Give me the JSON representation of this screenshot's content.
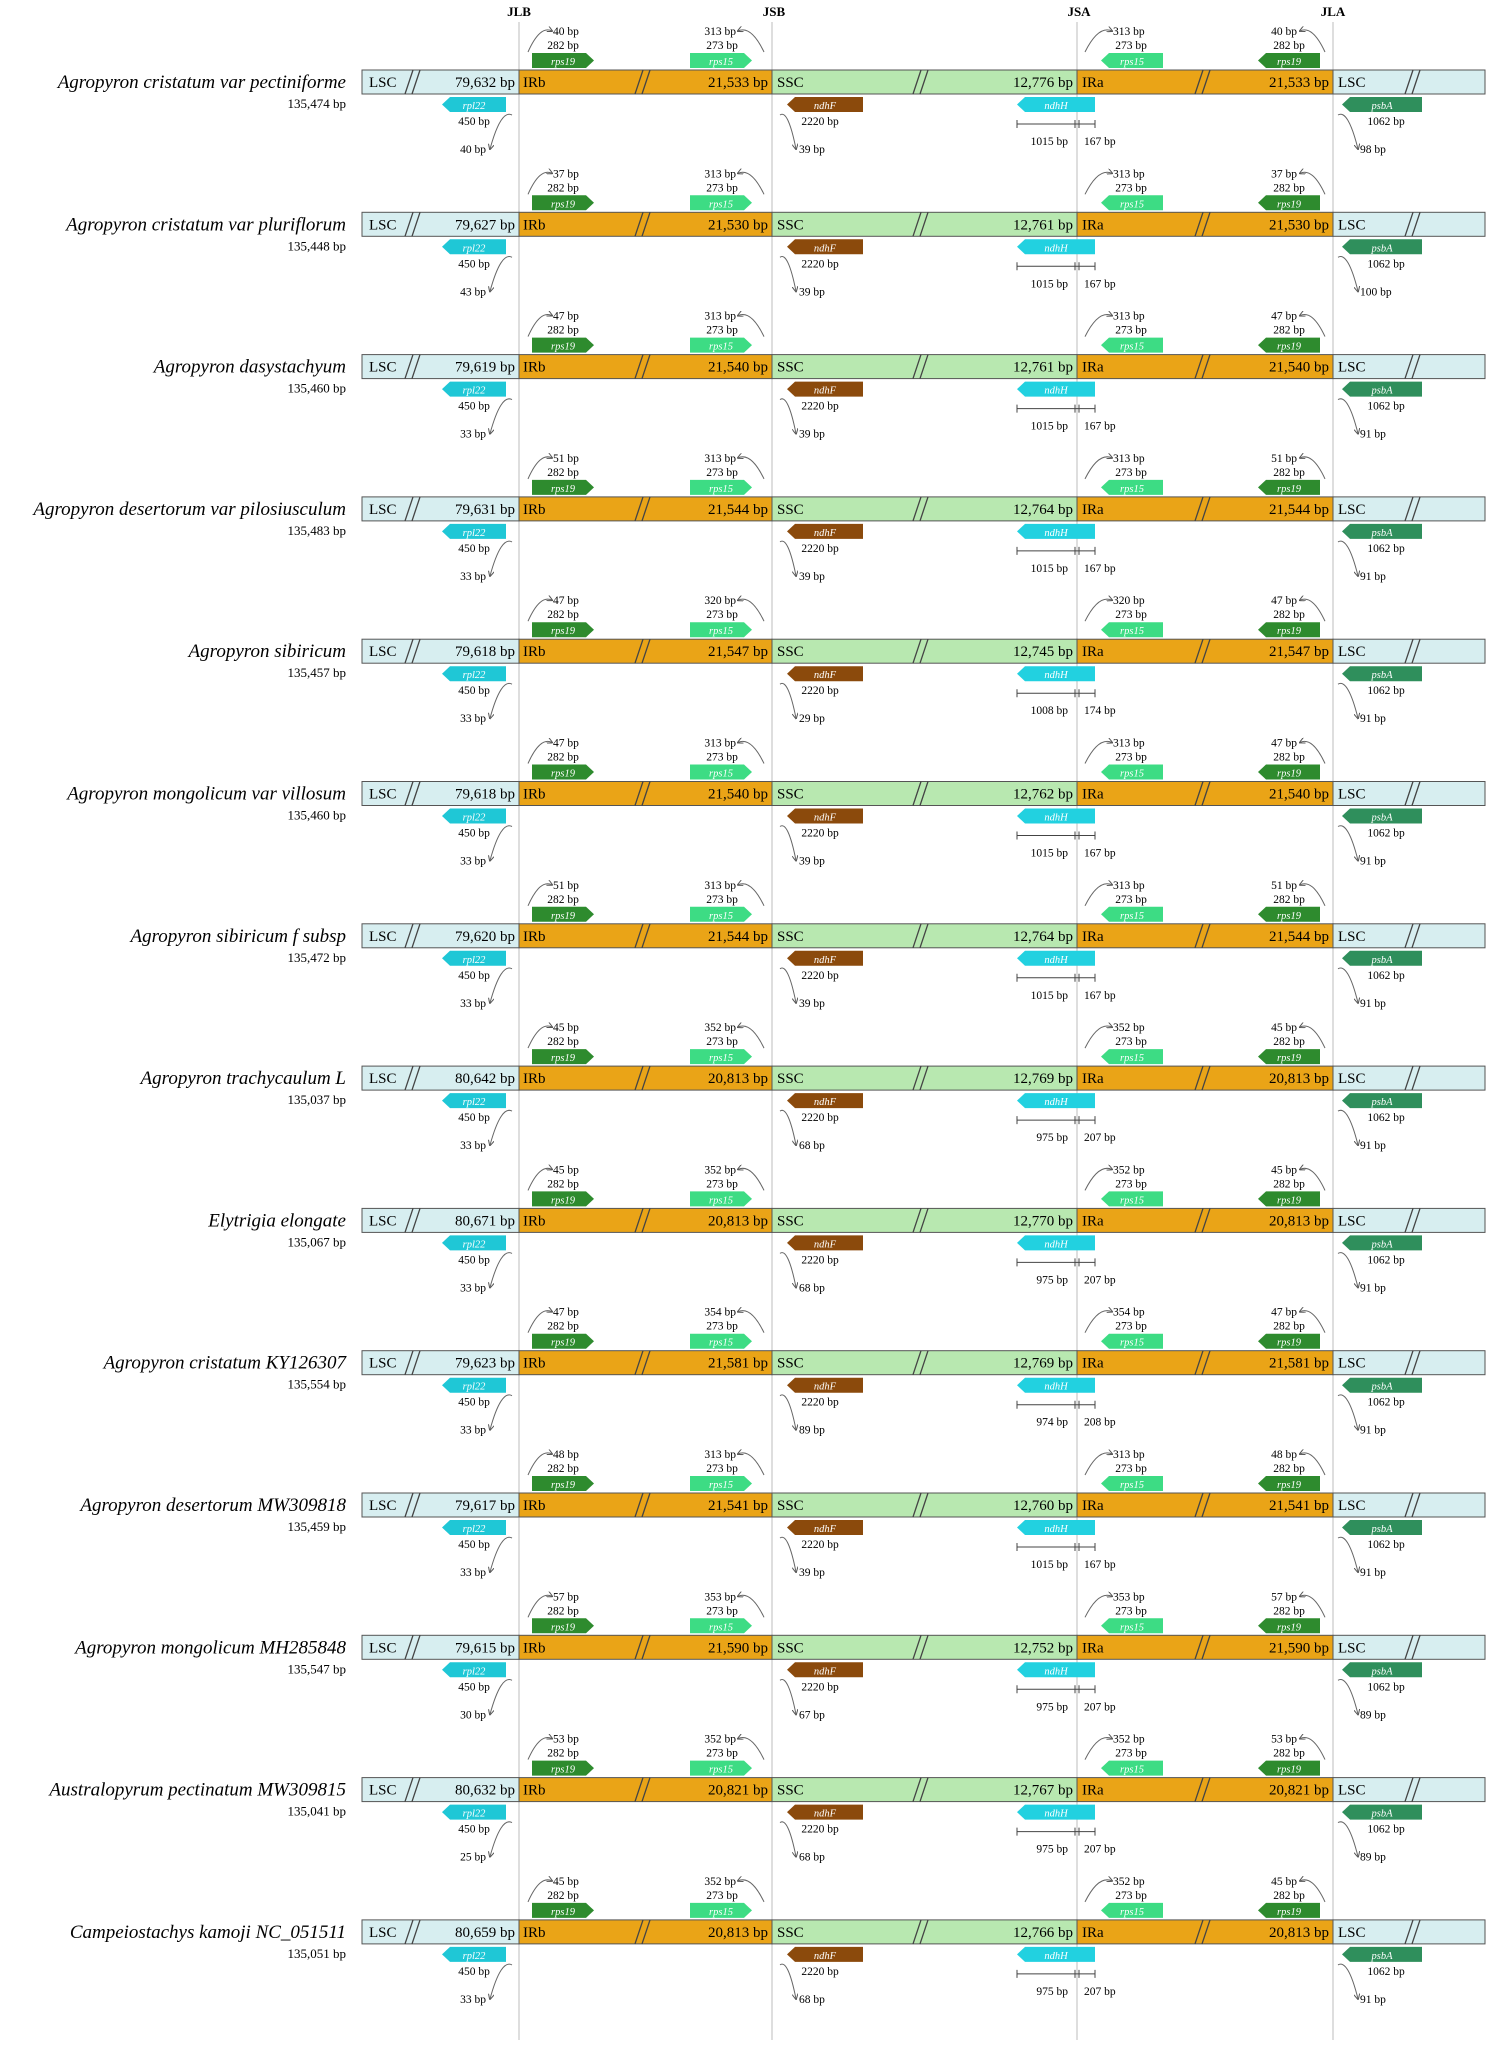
{
  "junctions": [
    "JLB",
    "JSB",
    "JSA",
    "JLA"
  ],
  "region_labels": {
    "lsc": "LSC",
    "irb": "IRb",
    "ssc": "SSC",
    "ira": "IRa"
  },
  "genes": {
    "rps19": "rps19",
    "rps15": "rps15",
    "rpl22": "rpl22",
    "ndhF": "ndhF",
    "ndhH": "ndhH",
    "psbA": "psbA"
  },
  "colors": {
    "lsc": "#d7eef0",
    "ir": "#eaa417",
    "ssc": "#b8e8b0",
    "rps19": "#2e8b2e",
    "rps15": "#3ddc84",
    "rpl22": "#1fc7d6",
    "ndhF": "#8b4a0c",
    "ndhH": "#22d1e0",
    "psbA": "#2f8f5c"
  },
  "rows": [
    {
      "name": "Agropyron cristatum var pectiniforme",
      "total": "135,474 bp",
      "lsc": "79,632 bp",
      "ir": "21,533 bp",
      "ssc": "12,776 bp",
      "jlb_top": "40 bp",
      "rps19_len": "282 bp",
      "jsb_top": "313 bp",
      "rps15_len": "273 bp",
      "jsa_top": "313 bp",
      "rps15b_len": "273 bp",
      "jla_top": "40 bp",
      "rps19b_len": "282 bp",
      "rpl22_len": "450 bp",
      "rpl22_over": "40 bp",
      "ndhF_len": "2220 bp",
      "ndhF_over": "39 bp",
      "ndhH_left": "1015 bp",
      "ndhH_right": "167 bp",
      "psbA_len": "1062 bp",
      "psbA_over": "98 bp"
    },
    {
      "name": "Agropyron cristatum var pluriflorum",
      "total": "135,448 bp",
      "lsc": "79,627 bp",
      "ir": "21,530 bp",
      "ssc": "12,761 bp",
      "jlb_top": "37 bp",
      "rps19_len": "282 bp",
      "jsb_top": "313 bp",
      "rps15_len": "273 bp",
      "jsa_top": "313 bp",
      "rps15b_len": "273 bp",
      "jla_top": "37 bp",
      "rps19b_len": "282 bp",
      "rpl22_len": "450 bp",
      "rpl22_over": "43 bp",
      "ndhF_len": "2220 bp",
      "ndhF_over": "39 bp",
      "ndhH_left": "1015 bp",
      "ndhH_right": "167 bp",
      "psbA_len": "1062 bp",
      "psbA_over": "100 bp"
    },
    {
      "name": "Agropyron dasystachyum",
      "total": "135,460 bp",
      "lsc": "79,619 bp",
      "ir": "21,540 bp",
      "ssc": "12,761 bp",
      "jlb_top": "47 bp",
      "rps19_len": "282 bp",
      "jsb_top": "313 bp",
      "rps15_len": "273 bp",
      "jsa_top": "313 bp",
      "rps15b_len": "273 bp",
      "jla_top": "47 bp",
      "rps19b_len": "282 bp",
      "rpl22_len": "450 bp",
      "rpl22_over": "33 bp",
      "ndhF_len": "2220 bp",
      "ndhF_over": "39 bp",
      "ndhH_left": "1015 bp",
      "ndhH_right": "167 bp",
      "psbA_len": "1062 bp",
      "psbA_over": "91 bp"
    },
    {
      "name": "Agropyron desertorum var pilosiusculum",
      "total": "135,483 bp",
      "lsc": "79,631 bp",
      "ir": "21,544 bp",
      "ssc": "12,764 bp",
      "jlb_top": "51 bp",
      "rps19_len": "282 bp",
      "jsb_top": "313 bp",
      "rps15_len": "273 bp",
      "jsa_top": "313 bp",
      "rps15b_len": "273 bp",
      "jla_top": "51 bp",
      "rps19b_len": "282 bp",
      "rpl22_len": "450 bp",
      "rpl22_over": "33 bp",
      "ndhF_len": "2220 bp",
      "ndhF_over": "39 bp",
      "ndhH_left": "1015 bp",
      "ndhH_right": "167 bp",
      "psbA_len": "1062 bp",
      "psbA_over": "91 bp"
    },
    {
      "name": "Agropyron sibiricum",
      "total": "135,457 bp",
      "lsc": "79,618 bp",
      "ir": "21,547 bp",
      "ssc": "12,745 bp",
      "jlb_top": "47 bp",
      "rps19_len": "282 bp",
      "jsb_top": "320 bp",
      "rps15_len": "273 bp",
      "jsa_top": "320 bp",
      "rps15b_len": "273 bp",
      "jla_top": "47 bp",
      "rps19b_len": "282 bp",
      "rpl22_len": "450 bp",
      "rpl22_over": "33 bp",
      "ndhF_len": "2220 bp",
      "ndhF_over": "29 bp",
      "ndhH_left": "1008 bp",
      "ndhH_right": "174 bp",
      "psbA_len": "1062 bp",
      "psbA_over": "91 bp"
    },
    {
      "name": "Agropyron mongolicum var villosum",
      "total": "135,460 bp",
      "lsc": "79,618 bp",
      "ir": "21,540 bp",
      "ssc": "12,762 bp",
      "jlb_top": "47 bp",
      "rps19_len": "282 bp",
      "jsb_top": "313 bp",
      "rps15_len": "273 bp",
      "jsa_top": "313 bp",
      "rps15b_len": "273 bp",
      "jla_top": "47 bp",
      "rps19b_len": "282 bp",
      "rpl22_len": "450 bp",
      "rpl22_over": "33 bp",
      "ndhF_len": "2220 bp",
      "ndhF_over": "39 bp",
      "ndhH_left": "1015 bp",
      "ndhH_right": "167 bp",
      "psbA_len": "1062 bp",
      "psbA_over": "91 bp"
    },
    {
      "name": "Agropyron sibiricum f subsp",
      "total": "135,472 bp",
      "lsc": "79,620 bp",
      "ir": "21,544 bp",
      "ssc": "12,764 bp",
      "jlb_top": "51 bp",
      "rps19_len": "282 bp",
      "jsb_top": "313 bp",
      "rps15_len": "273 bp",
      "jsa_top": "313 bp",
      "rps15b_len": "273 bp",
      "jla_top": "51 bp",
      "rps19b_len": "282 bp",
      "rpl22_len": "450 bp",
      "rpl22_over": "33 bp",
      "ndhF_len": "2220 bp",
      "ndhF_over": "39 bp",
      "ndhH_left": "1015 bp",
      "ndhH_right": "167 bp",
      "psbA_len": "1062 bp",
      "psbA_over": "91 bp"
    },
    {
      "name": "Agropyron trachycaulum L",
      "total": "135,037 bp",
      "lsc": "80,642 bp",
      "ir": "20,813 bp",
      "ssc": "12,769 bp",
      "jlb_top": "45 bp",
      "rps19_len": "282 bp",
      "jsb_top": "352 bp",
      "rps15_len": "273 bp",
      "jsa_top": "352 bp",
      "rps15b_len": "273 bp",
      "jla_top": "45 bp",
      "rps19b_len": "282 bp",
      "rpl22_len": "450 bp",
      "rpl22_over": "33 bp",
      "ndhF_len": "2220 bp",
      "ndhF_over": "68 bp",
      "ndhH_left": "975 bp",
      "ndhH_right": "207 bp",
      "psbA_len": "1062 bp",
      "psbA_over": "91 bp"
    },
    {
      "name": "Elytrigia elongate",
      "total": "135,067 bp",
      "lsc": "80,671 bp",
      "ir": "20,813 bp",
      "ssc": "12,770 bp",
      "jlb_top": "45 bp",
      "rps19_len": "282 bp",
      "jsb_top": "352 bp",
      "rps15_len": "273 bp",
      "jsa_top": "352 bp",
      "rps15b_len": "273 bp",
      "jla_top": "45 bp",
      "rps19b_len": "282 bp",
      "rpl22_len": "450 bp",
      "rpl22_over": "33 bp",
      "ndhF_len": "2220 bp",
      "ndhF_over": "68 bp",
      "ndhH_left": "975 bp",
      "ndhH_right": "207 bp",
      "psbA_len": "1062 bp",
      "psbA_over": "91 bp"
    },
    {
      "name": "Agropyron cristatum KY126307",
      "total": "135,554 bp",
      "lsc": "79,623 bp",
      "ir": "21,581 bp",
      "ssc": "12,769 bp",
      "jlb_top": "47 bp",
      "rps19_len": "282 bp",
      "jsb_top": "354 bp",
      "rps15_len": "273 bp",
      "jsa_top": "354 bp",
      "rps15b_len": "273 bp",
      "jla_top": "47 bp",
      "rps19b_len": "282 bp",
      "rpl22_len": "450 bp",
      "rpl22_over": "33 bp",
      "ndhF_len": "2220 bp",
      "ndhF_over": "89 bp",
      "ndhH_left": "974 bp",
      "ndhH_right": "208 bp",
      "psbA_len": "1062 bp",
      "psbA_over": "91 bp"
    },
    {
      "name": "Agropyron desertorum MW309818",
      "total": "135,459 bp",
      "lsc": "79,617 bp",
      "ir": "21,541 bp",
      "ssc": "12,760 bp",
      "jlb_top": "48 bp",
      "rps19_len": "282 bp",
      "jsb_top": "313 bp",
      "rps15_len": "273 bp",
      "jsa_top": "313 bp",
      "rps15b_len": "273 bp",
      "jla_top": "48 bp",
      "rps19b_len": "282 bp",
      "rpl22_len": "450 bp",
      "rpl22_over": "33 bp",
      "ndhF_len": "2220 bp",
      "ndhF_over": "39 bp",
      "ndhH_left": "1015 bp",
      "ndhH_right": "167 bp",
      "psbA_len": "1062 bp",
      "psbA_over": "91 bp"
    },
    {
      "name": "Agropyron mongolicum MH285848",
      "total": "135,547 bp",
      "lsc": "79,615 bp",
      "ir": "21,590 bp",
      "ssc": "12,752 bp",
      "jlb_top": "57 bp",
      "rps19_len": "282 bp",
      "jsb_top": "353 bp",
      "rps15_len": "273 bp",
      "jsa_top": "353 bp",
      "rps15b_len": "273 bp",
      "jla_top": "57 bp",
      "rps19b_len": "282 bp",
      "rpl22_len": "450 bp",
      "rpl22_over": "30 bp",
      "ndhF_len": "2220 bp",
      "ndhF_over": "67 bp",
      "ndhH_left": "975 bp",
      "ndhH_right": "207 bp",
      "psbA_len": "1062 bp",
      "psbA_over": "89 bp"
    },
    {
      "name": "Australopyrum pectinatum MW309815",
      "total": "135,041 bp",
      "lsc": "80,632 bp",
      "ir": "20,821 bp",
      "ssc": "12,767 bp",
      "jlb_top": "53 bp",
      "rps19_len": "282 bp",
      "jsb_top": "352 bp",
      "rps15_len": "273 bp",
      "jsa_top": "352 bp",
      "rps15b_len": "273 bp",
      "jla_top": "53 bp",
      "rps19b_len": "282 bp",
      "rpl22_len": "450 bp",
      "rpl22_over": "25 bp",
      "ndhF_len": "2220 bp",
      "ndhF_over": "68 bp",
      "ndhH_left": "975 bp",
      "ndhH_right": "207 bp",
      "psbA_len": "1062 bp",
      "psbA_over": "89 bp"
    },
    {
      "name": "Campeiostachys kamoji NC_051511",
      "total": "135,051 bp",
      "lsc": "80,659 bp",
      "ir": "20,813 bp",
      "ssc": "12,766 bp",
      "jlb_top": "45 bp",
      "rps19_len": "282 bp",
      "jsb_top": "352 bp",
      "rps15_len": "273 bp",
      "jsa_top": "352 bp",
      "rps15b_len": "273 bp",
      "jla_top": "45 bp",
      "rps19b_len": "282 bp",
      "rpl22_len": "450 bp",
      "rpl22_over": "33 bp",
      "ndhF_len": "2220 bp",
      "ndhF_over": "68 bp",
      "ndhH_left": "975 bp",
      "ndhH_right": "207 bp",
      "psbA_len": "1062 bp",
      "psbA_over": "91 bp"
    }
  ]
}
